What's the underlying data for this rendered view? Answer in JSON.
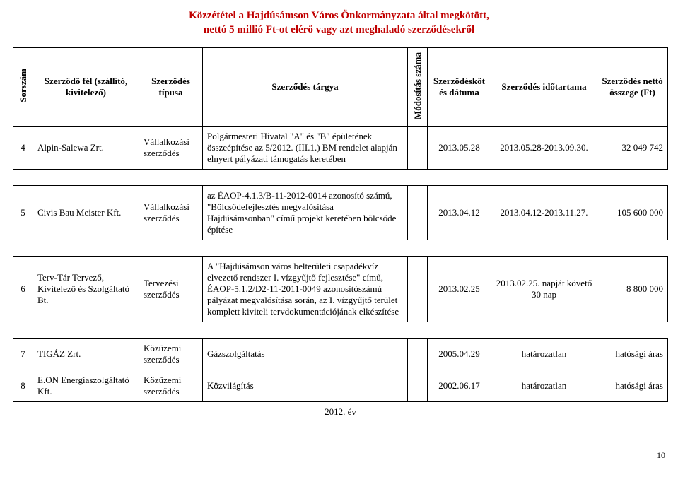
{
  "title_line1": "Közzététel a Hajdúsámson Város Önkormányzata által megkötött,",
  "title_line2": "nettó 5 millió Ft-ot elérő vagy azt meghaladó szerződésekről",
  "headers": {
    "sorszam": "Sorszám",
    "fel": "Szerződő fél (szállító, kivitelező)",
    "tipus": "Szerződés típusa",
    "targy": "Szerződés tárgya",
    "mod": "Módosítás száma",
    "datum": "Szerződéskötés dátuma",
    "ido": "Szerződés időtartama",
    "osszeg": "Szerződés nettó összege (Ft)"
  },
  "rows": [
    {
      "n": "4",
      "fel": "Alpin-Salewa Zrt.",
      "tipus": "Vállalkozási szerződés",
      "targy": "Polgármesteri Hivatal \"A\" és \"B\" épületének összeépítése az 5/2012. (III.1.) BM rendelet alapján elnyert pályázati támogatás keretében",
      "mod": "",
      "datum": "2013.05.28",
      "ido": "2013.05.28-2013.09.30.",
      "osszeg": "32 049 742"
    },
    {
      "n": "5",
      "fel": "Civis Bau Meister Kft.",
      "tipus": "Vállalkozási szerződés",
      "targy": "az ÉAOP-4.1.3/B-11-2012-0014 azonosító számú, \"Bölcsődefejlesztés megvalósítása Hajdúsámsonban\" című projekt keretében bölcsőde építése",
      "mod": "",
      "datum": "2013.04.12",
      "ido": "2013.04.12-2013.11.27.",
      "osszeg": "105 600 000"
    },
    {
      "n": "6",
      "fel": "Terv-Tár Tervező, Kivitelező és Szolgáltató Bt.",
      "tipus": "Tervezési szerződés",
      "targy": "A \"Hajdúsámson város belterületi csapadékvíz elvezető rendszer I. vízgyűjtő fejlesztése\" című, ÉAOP-5.1.2/D2-11-2011-0049 azonosítószámú pályázat megvalósítása során, az I. vízgyűjtő terület komplett kiviteli tervdokumentációjának elkészítése",
      "mod": "",
      "datum": "2013.02.25",
      "ido": "2013.02.25. napját követő 30 nap",
      "osszeg": "8 800 000"
    },
    {
      "n": "7",
      "fel": "TIGÁZ Zrt.",
      "tipus": "Közüzemi szerződés",
      "targy": "Gázszolgáltatás",
      "mod": "",
      "datum": "2005.04.29",
      "ido": "határozatlan",
      "osszeg": "hatósági áras"
    },
    {
      "n": "8",
      "fel": "E.ON Energiaszolgáltató Kft.",
      "tipus": "Közüzemi szerződés",
      "targy": "Közvilágítás",
      "mod": "",
      "datum": "2002.06.17",
      "ido": "határozatlan",
      "osszeg": "hatósági áras"
    }
  ],
  "year_label": "2012. év",
  "page_number": "10"
}
